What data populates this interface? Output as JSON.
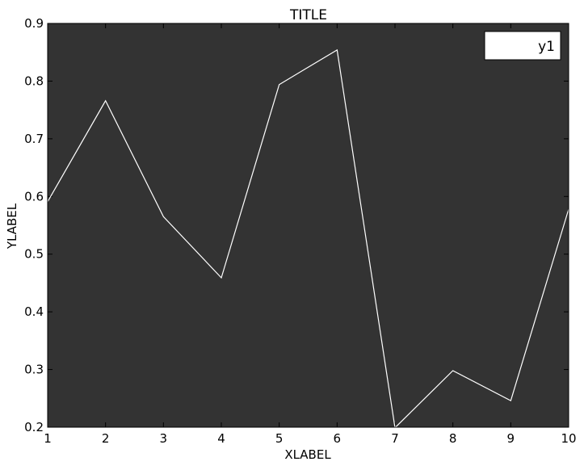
{
  "chart_data": {
    "type": "line",
    "title": "TITLE",
    "xlabel": "XLABEL",
    "ylabel": "YLABEL",
    "xlim": [
      1,
      10
    ],
    "ylim": [
      0.2,
      0.9
    ],
    "xticks": [
      "1",
      "2",
      "3",
      "4",
      "5",
      "6",
      "7",
      "8",
      "9",
      "10"
    ],
    "yticks": [
      "0.2",
      "0.3",
      "0.4",
      "0.5",
      "0.6",
      "0.7",
      "0.8",
      "0.9"
    ],
    "grid": false,
    "legend_placement": "top-right",
    "background_color": "#333333",
    "series": [
      {
        "name": "y1",
        "color": "#ffffff",
        "x": [
          1,
          2,
          3,
          4,
          5,
          6,
          7,
          8,
          9,
          10
        ],
        "y": [
          0.591,
          0.766,
          0.565,
          0.459,
          0.794,
          0.854,
          0.199,
          0.298,
          0.246,
          0.578
        ]
      }
    ]
  }
}
